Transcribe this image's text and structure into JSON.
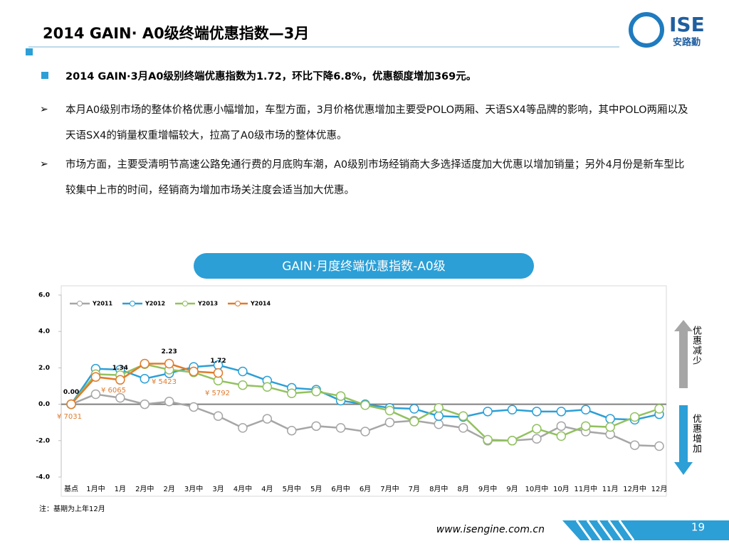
{
  "header": {
    "title": "2014 GAIN· A0级终端优惠指数—3月"
  },
  "logo": {
    "name": "ISE",
    "subtitle": "安路勤"
  },
  "bullets": [
    "2014 GAIN·3月A0级别终端优惠指数为1.72，环比下降6.8%，优惠额度增加369元。",
    "本月A0级别市场的整体价格优惠小幅增加，车型方面，3月价格优惠增加主要受POLO两厢、天语SX4等品牌的影响，其中POLO两厢以及天语SX4的销量权重增幅较大，拉高了A0级市场的整体优惠。",
    "市场方面，主要受清明节高速公路免通行费的月底购车潮，A0级别市场经销商大多选择适度加大优惠以增加销量；另外4月份是新车型比较集中上市的时间，经销商为增加市场关注度会适当加大优惠。"
  ],
  "chart_data": {
    "type": "line",
    "title": "GAIN·月度终端优惠指数-A0级",
    "categories": [
      "基点",
      "1月中",
      "1月",
      "2月中",
      "2月",
      "3月中",
      "3月",
      "4月中",
      "4月",
      "5月中",
      "5月",
      "6月中",
      "6月",
      "7月中",
      "7月",
      "8月中",
      "8月",
      "9月中",
      "9月",
      "10月中",
      "10月",
      "11月中",
      "11月",
      "12月中",
      "12月"
    ],
    "series": [
      {
        "name": "Y2011",
        "color": "#a6a6a6",
        "values": [
          0,
          0.55,
          0.35,
          0.0,
          0.15,
          -0.15,
          -0.65,
          -1.3,
          -0.8,
          -1.45,
          -1.2,
          -1.3,
          -1.5,
          -1.0,
          -0.9,
          -1.1,
          -1.3,
          -2.0,
          -2.0,
          -1.9,
          -1.2,
          -1.5,
          -1.65,
          -2.25,
          -2.3
        ]
      },
      {
        "name": "Y2012",
        "color": "#2c9fd6",
        "values": [
          0,
          1.95,
          1.9,
          1.4,
          1.7,
          2.05,
          2.15,
          1.8,
          1.3,
          0.9,
          0.8,
          0.2,
          0.0,
          -0.2,
          -0.25,
          -0.65,
          -0.7,
          -0.4,
          -0.3,
          -0.4,
          -0.4,
          -0.3,
          -0.8,
          -0.85,
          -0.55
        ]
      },
      {
        "name": "Y2013",
        "color": "#92c15f",
        "values": [
          0,
          1.65,
          1.6,
          2.2,
          1.9,
          1.75,
          1.3,
          1.05,
          0.95,
          0.6,
          0.7,
          0.45,
          -0.05,
          -0.35,
          -0.95,
          -0.2,
          -0.65,
          -1.95,
          -2.0,
          -1.35,
          -1.75,
          -1.2,
          -1.25,
          -0.7,
          -0.25
        ]
      },
      {
        "name": "Y2014",
        "color": "#e07b2c",
        "values": [
          0.0,
          1.5,
          1.34,
          2.23,
          2.23,
          1.8,
          1.72,
          null,
          null,
          null,
          null,
          null,
          null,
          null,
          null,
          null,
          null,
          null,
          null,
          null,
          null,
          null,
          null,
          null,
          null
        ],
        "value_labels": [
          "0.00",
          null,
          "1.34",
          null,
          "2.23",
          null,
          "1.72",
          null,
          null,
          null,
          null,
          null,
          null,
          null,
          null,
          null,
          null,
          null,
          null,
          null,
          null,
          null,
          null,
          null,
          null
        ]
      }
    ],
    "annotations": [
      "¥ 7031",
      "¥ 6065",
      "¥ 5423",
      "¥ 5792"
    ],
    "ylim": [
      -4,
      6
    ],
    "yticks": [
      {
        "value": -4,
        "label": "-4.0"
      },
      {
        "value": -2,
        "label": "-2.0"
      },
      {
        "value": 0,
        "label": "0.0"
      },
      {
        "value": 2,
        "label": "2.0"
      },
      {
        "value": 4,
        "label": "4.0"
      },
      {
        "value": 6,
        "label": "6.0"
      }
    ],
    "zero_line": true,
    "legend": "top-left"
  },
  "side_labels": {
    "top": "优惠减少",
    "bottom": "优惠增加"
  },
  "note": "注：基期为上年12月",
  "footer": {
    "url": "www.isengine.com.cn",
    "page": 19
  }
}
